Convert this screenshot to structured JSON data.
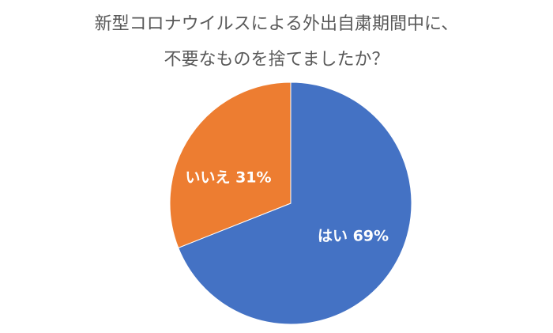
{
  "chart_data": {
    "type": "pie",
    "title_lines": [
      "新型コロナウイルスによる外出自粛期間中に、",
      "不要なものを捨てましたか？"
    ],
    "slices": [
      {
        "label": "はい",
        "value": 69,
        "display": "はい 69%",
        "color": "#4472C4"
      },
      {
        "label": "いいえ",
        "value": 31,
        "display": "いいえ 31%",
        "color": "#ED7D31"
      }
    ],
    "start": "12 o'clock",
    "direction": "clockwise"
  }
}
